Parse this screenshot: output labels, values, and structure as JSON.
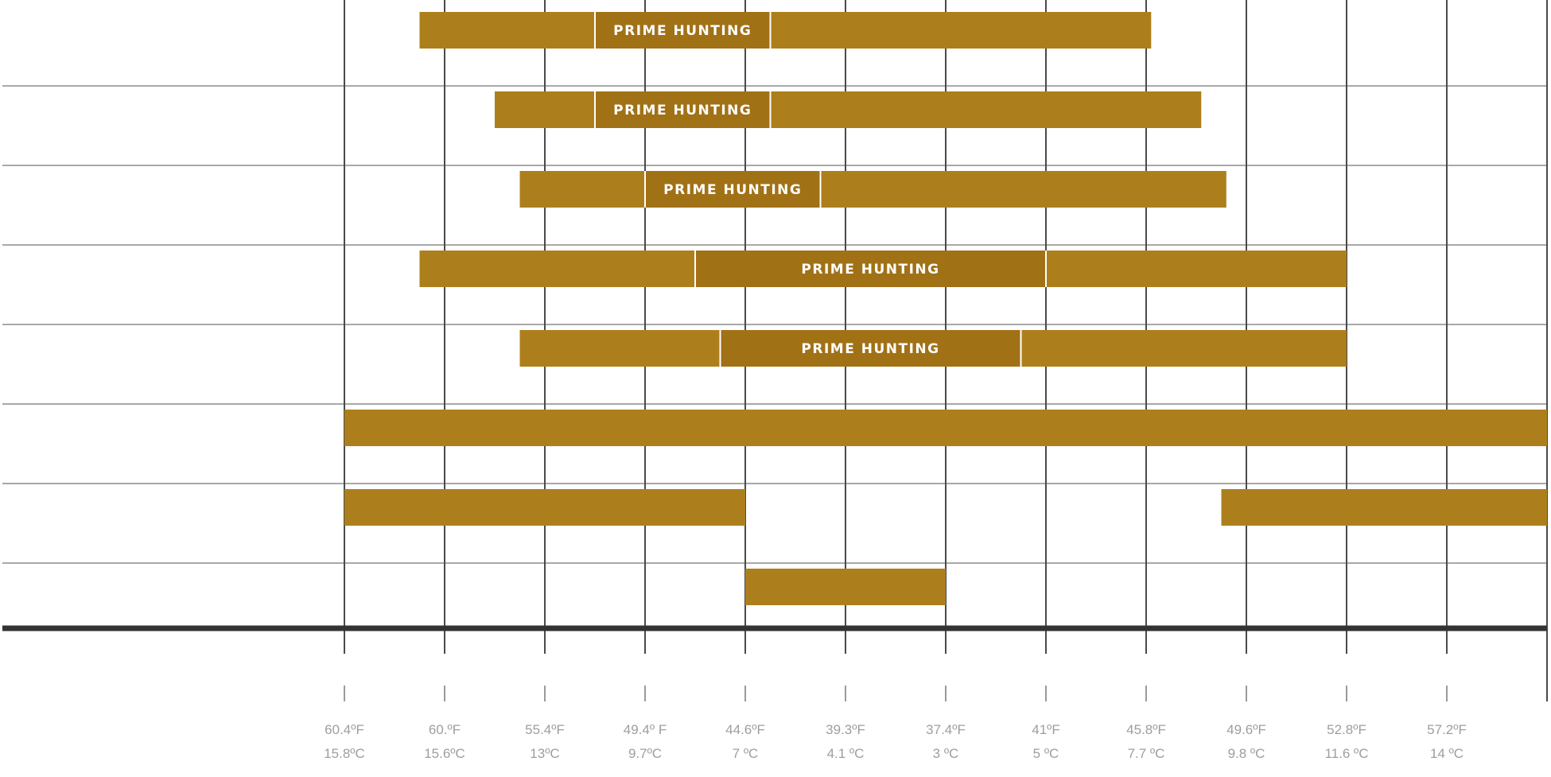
{
  "chart_data": {
    "type": "bar",
    "subtype": "range-timeline",
    "title": "",
    "xlabel": "",
    "ylabel": "",
    "x_ticks": [
      {
        "f": "60.4ºF",
        "c": "15.8ºC"
      },
      {
        "f": "60.ºF",
        "c": "15.6ºC"
      },
      {
        "f": "55.4ºF",
        "c": "13ºC"
      },
      {
        "f": "49.4º F",
        "c": "9.7ºC"
      },
      {
        "f": "44.6ºF",
        "c": "7 ºC"
      },
      {
        "f": "39.3ºF",
        "c": "4.1 ºC"
      },
      {
        "f": "37.4ºF",
        "c": "3 ºC"
      },
      {
        "f": "41ºF",
        "c": "5 ºC"
      },
      {
        "f": "45.8ºF",
        "c": "7.7 ºC"
      },
      {
        "f": "49.6ºF",
        "c": "9.8 ºC"
      },
      {
        "f": "52.8ºF",
        "c": "11.6 ºC"
      },
      {
        "f": "57.2ºF",
        "c": "14 ºC"
      }
    ],
    "x_domain": [
      0,
      12
    ],
    "grid": true,
    "rows": [
      {
        "segments": [
          [
            0.75,
            8.05
          ]
        ],
        "prime": [
          2.5,
          4.25
        ],
        "prime_label": "PRIME HUNTING"
      },
      {
        "segments": [
          [
            1.5,
            8.55
          ]
        ],
        "prime": [
          2.5,
          4.25
        ],
        "prime_label": "PRIME HUNTING"
      },
      {
        "segments": [
          [
            1.75,
            8.8
          ]
        ],
        "prime": [
          3.0,
          4.75
        ],
        "prime_label": "PRIME HUNTING"
      },
      {
        "segments": [
          [
            0.75,
            10.0
          ]
        ],
        "prime": [
          3.5,
          7.0
        ],
        "prime_label": "PRIME HUNTING"
      },
      {
        "segments": [
          [
            1.75,
            10.0
          ]
        ],
        "prime": [
          3.75,
          6.75
        ],
        "prime_label": "PRIME HUNTING"
      },
      {
        "segments": [
          [
            0.0,
            12.0
          ]
        ]
      },
      {
        "segments": [
          [
            0.0,
            4.0
          ],
          [
            8.75,
            12.0
          ]
        ]
      },
      {
        "segments": [
          [
            4.0,
            6.0
          ]
        ]
      }
    ],
    "colors": {
      "bar": "#ad7f1c",
      "prime": "#a17116",
      "divider": "#ffffff",
      "label": "#ffffff"
    }
  }
}
